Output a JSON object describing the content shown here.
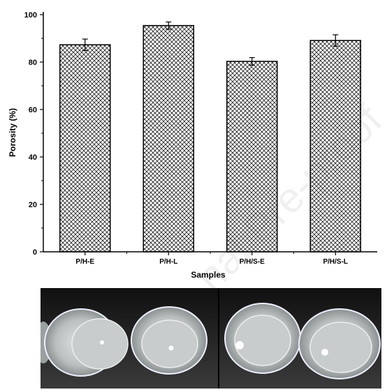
{
  "watermark": "nal Pre-proof",
  "chart_data": {
    "type": "bar",
    "categories": [
      "P/H-E",
      "P/H-L",
      "P/H/S-E",
      "P/H/S-L"
    ],
    "values": [
      87.3,
      95.4,
      80.3,
      89.1
    ],
    "errors": [
      2.4,
      1.5,
      1.6,
      2.4
    ],
    "xlabel": "Samples",
    "ylabel": "Porosity (%)",
    "ylim": [
      0,
      100
    ],
    "yticks": [
      0,
      20,
      40,
      60,
      80,
      100
    ],
    "bar_pattern": "crosshatch",
    "grid": false,
    "legend": "none"
  },
  "photo": {
    "description_icon": "beakers-photo",
    "beakers": 4
  }
}
